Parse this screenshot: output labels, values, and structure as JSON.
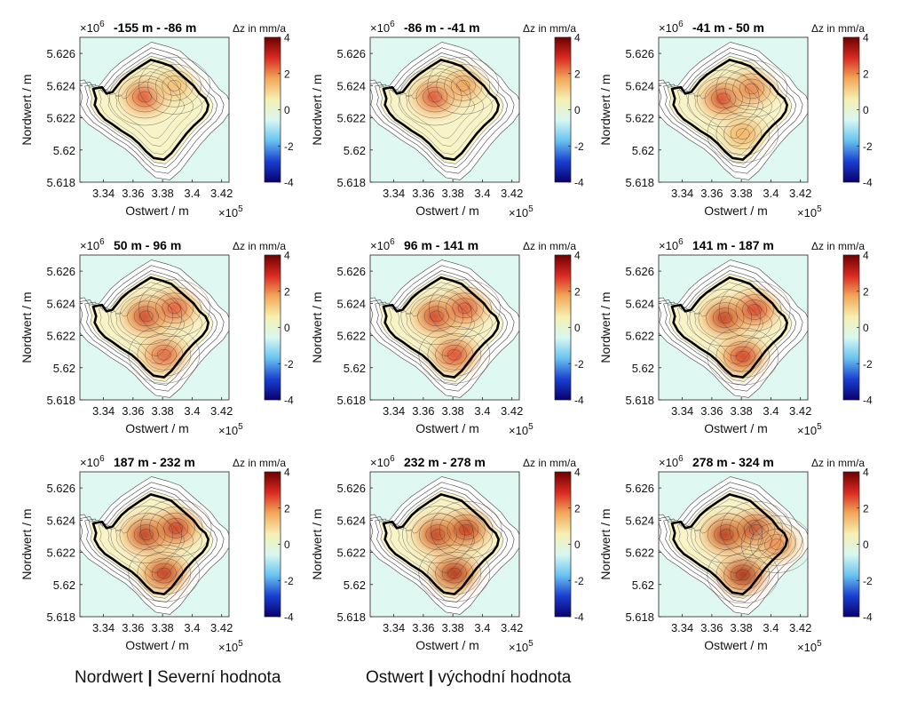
{
  "chart_data": {
    "type": "heatmap",
    "shared": {
      "xlabel": "Ostwert / m",
      "ylabel": "Nordwert / m",
      "x_exponent_label": "×10",
      "x_exponent": "5",
      "y_exponent_label": "×10",
      "y_exponent": "6",
      "colorbar_title": "Δz in mm/a",
      "x_ticks": [
        "3.34",
        "3.36",
        "3.38",
        "3.4",
        "3.42"
      ],
      "x_tick_values": [
        3.34,
        3.36,
        3.38,
        3.4,
        3.42
      ],
      "y_ticks": [
        "5.626",
        "5.624",
        "5.622",
        "5.62",
        "5.618"
      ],
      "y_tick_values": [
        5.626,
        5.624,
        5.622,
        5.62,
        5.618
      ],
      "xlim": [
        3.324,
        3.425
      ],
      "ylim": [
        5.618,
        5.627
      ],
      "colorbar_ticks": [
        "4",
        "2",
        "0",
        "-2",
        "-4"
      ],
      "colorbar_values": [
        4,
        2,
        0,
        -2,
        -4
      ],
      "colorbar_range": [
        -4,
        4
      ],
      "colormap": [
        "#08006e",
        "#1a3fd0",
        "#67c3f0",
        "#d8f7f2",
        "#f6f0b2",
        "#f2a85a",
        "#d82a22",
        "#6e0000"
      ],
      "background_color": "#dff8f1"
    },
    "panels": [
      {
        "title": "-155 m - -86 m",
        "peaks": [
          {
            "x": 3.368,
            "y": 5.6233,
            "v": 2.6
          },
          {
            "x": 3.388,
            "y": 5.624,
            "v": 1.4
          }
        ]
      },
      {
        "title": "-86 m - -41 m",
        "peaks": [
          {
            "x": 3.368,
            "y": 5.6233,
            "v": 2.7
          },
          {
            "x": 3.387,
            "y": 5.624,
            "v": 1.8
          }
        ]
      },
      {
        "title": "-41 m - 50 m",
        "peaks": [
          {
            "x": 3.368,
            "y": 5.6232,
            "v": 2.9
          },
          {
            "x": 3.387,
            "y": 5.6238,
            "v": 2.1
          },
          {
            "x": 3.381,
            "y": 5.621,
            "v": 1.6
          }
        ]
      },
      {
        "title": "50 m - 96 m",
        "peaks": [
          {
            "x": 3.369,
            "y": 5.6232,
            "v": 3.0
          },
          {
            "x": 3.388,
            "y": 5.6237,
            "v": 2.5
          },
          {
            "x": 3.381,
            "y": 5.6208,
            "v": 2.4
          }
        ]
      },
      {
        "title": "96 m - 141 m",
        "peaks": [
          {
            "x": 3.369,
            "y": 5.6232,
            "v": 3.0
          },
          {
            "x": 3.388,
            "y": 5.6237,
            "v": 2.6
          },
          {
            "x": 3.381,
            "y": 5.6208,
            "v": 2.7
          }
        ]
      },
      {
        "title": "141 m - 187 m",
        "peaks": [
          {
            "x": 3.369,
            "y": 5.6231,
            "v": 3.1
          },
          {
            "x": 3.389,
            "y": 5.6236,
            "v": 2.8
          },
          {
            "x": 3.381,
            "y": 5.6207,
            "v": 2.9
          }
        ]
      },
      {
        "title": "187 m - 232 m",
        "peaks": [
          {
            "x": 3.369,
            "y": 5.6231,
            "v": 3.2
          },
          {
            "x": 3.389,
            "y": 5.6235,
            "v": 3.0
          },
          {
            "x": 3.381,
            "y": 5.6207,
            "v": 3.1
          }
        ]
      },
      {
        "title": "232 m - 278 m",
        "peaks": [
          {
            "x": 3.37,
            "y": 5.6231,
            "v": 3.2
          },
          {
            "x": 3.389,
            "y": 5.6234,
            "v": 3.1
          },
          {
            "x": 3.381,
            "y": 5.6207,
            "v": 3.3
          }
        ]
      },
      {
        "title": "278 m - 324 m",
        "peaks": [
          {
            "x": 3.37,
            "y": 5.6231,
            "v": 3.3
          },
          {
            "x": 3.39,
            "y": 5.6234,
            "v": 3.2
          },
          {
            "x": 3.381,
            "y": 5.6206,
            "v": 3.4
          },
          {
            "x": 3.404,
            "y": 5.6225,
            "v": 2.0
          }
        ]
      }
    ],
    "outline": [
      [
        3.333,
        5.6238
      ],
      [
        3.339,
        5.6239
      ],
      [
        3.342,
        5.6235
      ],
      [
        3.346,
        5.6236
      ],
      [
        3.352,
        5.6243
      ],
      [
        3.357,
        5.6247
      ],
      [
        3.365,
        5.6252
      ],
      [
        3.372,
        5.6256
      ],
      [
        3.38,
        5.6254
      ],
      [
        3.386,
        5.6252
      ],
      [
        3.391,
        5.6248
      ],
      [
        3.396,
        5.6244
      ],
      [
        3.401,
        5.624
      ],
      [
        3.405,
        5.6235
      ],
      [
        3.409,
        5.6232
      ],
      [
        3.411,
        5.6228
      ],
      [
        3.41,
        5.6224
      ],
      [
        3.407,
        5.622
      ],
      [
        3.401,
        5.6215
      ],
      [
        3.396,
        5.621
      ],
      [
        3.391,
        5.6204
      ],
      [
        3.386,
        5.6198
      ],
      [
        3.381,
        5.6194
      ],
      [
        3.374,
        5.6195
      ],
      [
        3.369,
        5.6199
      ],
      [
        3.364,
        5.6204
      ],
      [
        3.359,
        5.6208
      ],
      [
        3.352,
        5.6212
      ],
      [
        3.346,
        5.6216
      ],
      [
        3.341,
        5.6219
      ],
      [
        3.337,
        5.6223
      ],
      [
        3.334,
        5.6228
      ],
      [
        3.335,
        5.6232
      ],
      [
        3.333,
        5.6238
      ]
    ]
  },
  "captions": {
    "left_term": "Nordwert",
    "separator": "|",
    "left_translation": "Severní hodnota",
    "right_term": "Ostwert",
    "right_translation": "východní hodnota"
  }
}
